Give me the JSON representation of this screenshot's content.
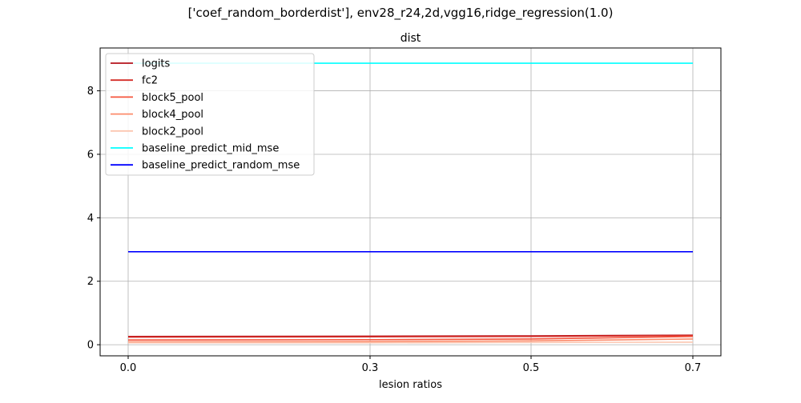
{
  "figure": {
    "suptitle": "['coef_random_borderdist'], env28_r24,2d,vgg16,ridge_regression(1.0)"
  },
  "chart_data": {
    "type": "line",
    "title": "dist",
    "xlabel": "lesion ratios",
    "ylabel": "",
    "x": [
      0.0,
      0.3,
      0.5,
      0.7
    ],
    "x_tick_labels": [
      "0.0",
      "0.3",
      "0.5",
      "0.7"
    ],
    "y_ticks": [
      0,
      2,
      4,
      6,
      8
    ],
    "ylim": [
      -0.35,
      9.35
    ],
    "grid": true,
    "legend_position": "top-left",
    "series": [
      {
        "name": "logits",
        "color": "#b5121b",
        "values": [
          0.26,
          0.27,
          0.28,
          0.3
        ]
      },
      {
        "name": "fc2",
        "color": "#d42d27",
        "values": [
          0.24,
          0.25,
          0.26,
          0.29
        ]
      },
      {
        "name": "block5_pool",
        "color": "#f5553d",
        "values": [
          0.15,
          0.16,
          0.18,
          0.26
        ]
      },
      {
        "name": "block4_pool",
        "color": "#fc8b6b",
        "values": [
          0.09,
          0.1,
          0.12,
          0.18
        ]
      },
      {
        "name": "block2_pool",
        "color": "#fcc6b0",
        "values": [
          0.06,
          0.06,
          0.07,
          0.08
        ]
      },
      {
        "name": "baseline_predict_mid_mse",
        "color": "#00ffff",
        "values": [
          8.87,
          8.87,
          8.87,
          8.87
        ]
      },
      {
        "name": "baseline_predict_random_mse",
        "color": "#0000ff",
        "values": [
          2.93,
          2.93,
          2.93,
          2.93
        ]
      }
    ]
  }
}
